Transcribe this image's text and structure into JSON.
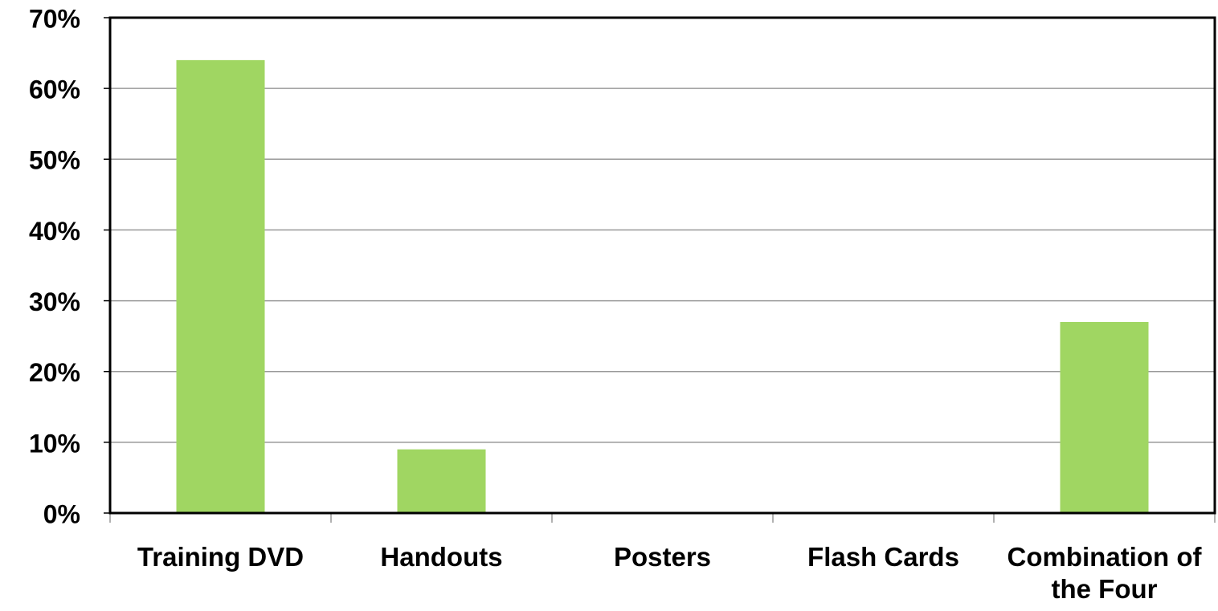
{
  "chart_data": {
    "type": "bar",
    "categories": [
      "Training DVD",
      "Handouts",
      "Posters",
      "Flash Cards",
      "Combination of the Four"
    ],
    "values": [
      64,
      9,
      0,
      0,
      27
    ],
    "color": "#a0d662",
    "ylim": [
      0,
      70
    ],
    "yticks": [
      {
        "value": 0,
        "label": "0%"
      },
      {
        "value": 10,
        "label": "10%"
      },
      {
        "value": 20,
        "label": "20%"
      },
      {
        "value": 30,
        "label": "30%"
      },
      {
        "value": 40,
        "label": "40%"
      },
      {
        "value": 50,
        "label": "50%"
      },
      {
        "value": 60,
        "label": "60%"
      },
      {
        "value": 70,
        "label": "70%"
      }
    ],
    "grid": true
  }
}
